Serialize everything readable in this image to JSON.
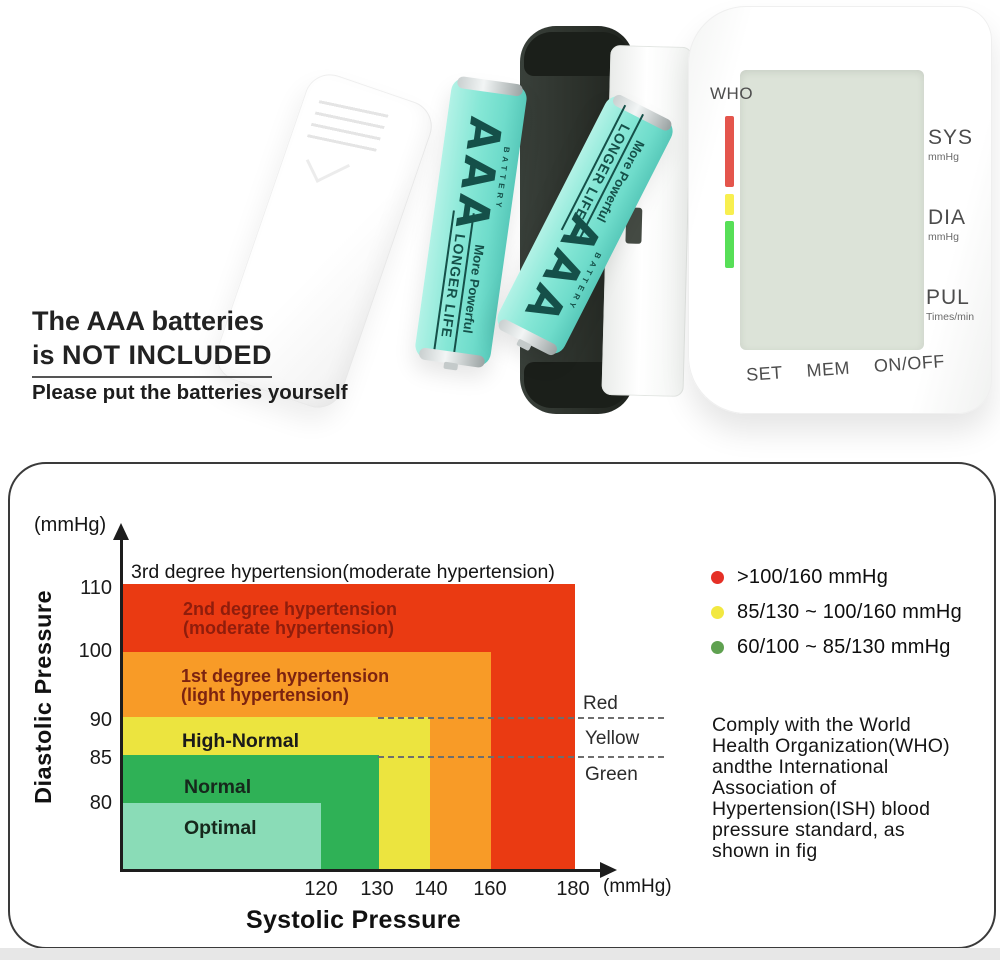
{
  "photo": {
    "caption": {
      "line1": "The AAA batteries",
      "line2_prefix": "is ",
      "line2_bold": "NOT INCLUDED",
      "line3": "Please put the batteries yourself"
    },
    "battery": {
      "brand": "AAA",
      "brand_sub": "BATTERY",
      "tagline1": "More Powerful",
      "tagline2": "LONGER LIFE",
      "body_color": "#7fe5d3"
    },
    "device": {
      "who": "WHO",
      "readouts": [
        {
          "label": "SYS",
          "unit": "mmHg"
        },
        {
          "label": "DIA",
          "unit": "mmHg"
        },
        {
          "label": "PUL",
          "unit": "Times/min"
        }
      ],
      "buttons": [
        "SET",
        "MEM",
        "ON/OFF"
      ],
      "indicator_colors": {
        "red": "#e4554c",
        "yellow": "#f8ef4f",
        "green": "#57df57"
      }
    }
  },
  "chart_data": {
    "type": "area",
    "xlabel": "Systolic Pressure",
    "ylabel": "Diastolic Pressure",
    "x_unit": "(mmHg)",
    "y_unit": "(mmHg)",
    "x_ticks": [
      "120",
      "130",
      "140",
      "160",
      "180"
    ],
    "y_ticks": [
      "110",
      "100",
      "90",
      "85",
      "80"
    ],
    "zones": [
      {
        "label": "3rd degree hypertension(moderate hypertension)",
        "color": "#ea3a12",
        "systolic_to": 180,
        "diastolic_to": 110
      },
      {
        "label": "2nd degree hypertension\n(moderate hypertension)",
        "color": "#ea3a12",
        "systolic_to": 180,
        "diastolic_to": 110
      },
      {
        "label": "1st degree hypertension\n(light hypertension)",
        "color": "#f89b27",
        "systolic_to": 160,
        "diastolic_to": 100
      },
      {
        "label": "High-Normal",
        "color": "#ece43f",
        "systolic_to": 140,
        "diastolic_to": 90
      },
      {
        "label": "Normal",
        "color": "#2fb156",
        "systolic_to": 130,
        "diastolic_to": 85
      },
      {
        "label": "Optimal",
        "color": "#8adcb7",
        "systolic_to": 120,
        "diastolic_to": 80
      }
    ],
    "threshold_lines_diastolic": [
      90,
      85
    ],
    "threshold_labels": [
      "Red",
      "Yellow",
      "Green"
    ],
    "legend": [
      {
        "dot_color": "#e53026",
        "label": ">100/160 mmHg"
      },
      {
        "dot_color": "#f2e841",
        "label": "85/130 ~ 100/160 mmHg"
      },
      {
        "dot_color": "#5fa150",
        "label": "60/100 ~ 85/130 mmHg"
      }
    ],
    "note": "Comply with the World\nHealth Organization(WHO)\nandthe International\nAssociation of\nHypertension(ISH) blood\npressure standard, as\nshown in fig"
  }
}
